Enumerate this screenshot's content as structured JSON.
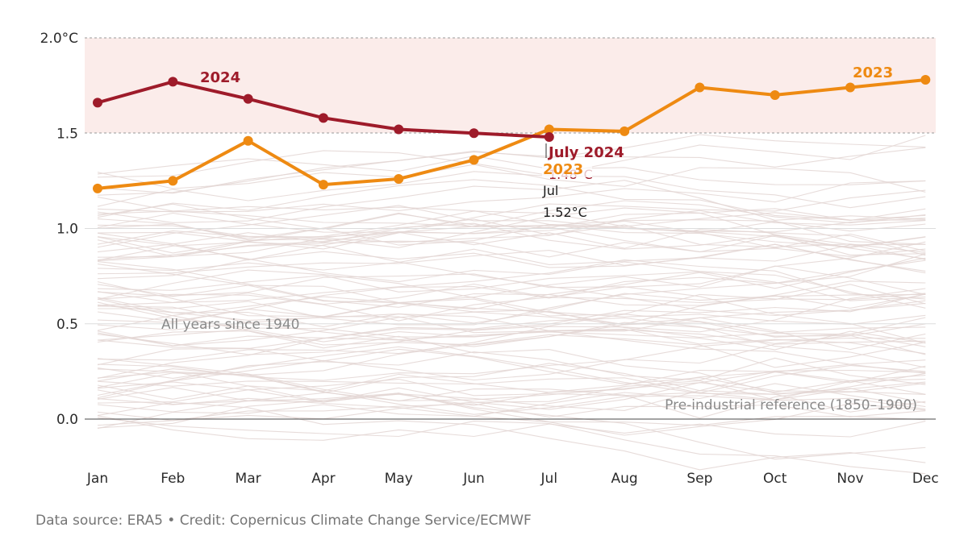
{
  "chart_data": {
    "type": "line",
    "title": "",
    "xlabel": "",
    "ylabel": "",
    "categories": [
      "Jan",
      "Feb",
      "Mar",
      "Apr",
      "May",
      "Jun",
      "Jul",
      "Aug",
      "Sep",
      "Oct",
      "Nov",
      "Dec"
    ],
    "y_ticks": [
      {
        "value": 2.0,
        "label": "2.0°C"
      },
      {
        "value": 1.5,
        "label": "1.5"
      },
      {
        "value": 1.0,
        "label": "1.0"
      },
      {
        "value": 0.5,
        "label": "0.5"
      },
      {
        "value": 0.0,
        "label": "0.0"
      }
    ],
    "ylim": [
      -0.3,
      2.0
    ],
    "threshold_band": [
      1.5,
      2.0
    ],
    "series": [
      {
        "name": "2024",
        "color": "#9e1b2a",
        "values": [
          1.66,
          1.77,
          1.68,
          1.58,
          1.52,
          1.5,
          1.48,
          null,
          null,
          null,
          null,
          null
        ]
      },
      {
        "name": "2023",
        "color": "#ee8a12",
        "values": [
          1.21,
          1.25,
          1.46,
          1.23,
          1.26,
          1.36,
          1.52,
          1.51,
          1.74,
          1.7,
          1.74,
          1.78
        ]
      }
    ],
    "background_series_label": "All years since 1940",
    "background_color": "#e3d6d3",
    "annotations": {
      "all_years": "All years since 1940",
      "preindustrial": "Pre-industrial reference (1850–1900)",
      "july_2024_title": "July 2024",
      "july_2024_value": "1.48°C",
      "july_2023_title": "2023",
      "july_2023_month": "Jul",
      "july_2023_value": "1.52°C"
    }
  },
  "footer": "Data source: ERA5 • Credit: Copernicus Climate Change Service/ECMWF"
}
